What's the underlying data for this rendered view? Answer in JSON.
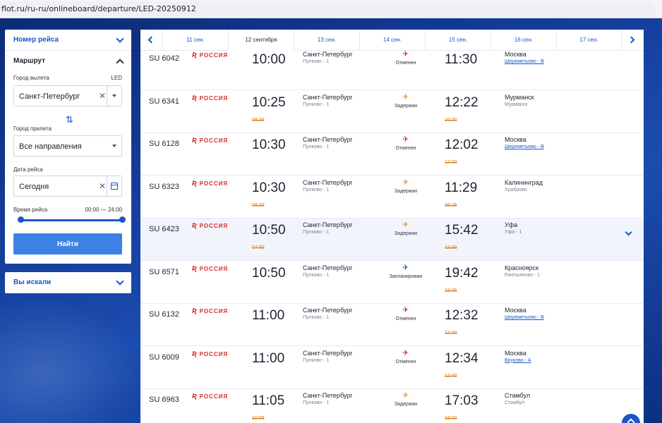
{
  "browser": {
    "url": "flot.ru/ru-ru/onlineboard/departure/LED-20250912"
  },
  "filters": {
    "flight_number_label": "Номер рейса",
    "route_label": "Маршрут",
    "departure_city_label": "Город вылета",
    "departure_code": "LED",
    "departure_city_value": "Санкт-Петербург",
    "arrival_city_label": "Город прилета",
    "arrival_city_value": "Все направления",
    "date_label": "Дата рейса",
    "date_value": "Сегодня",
    "time_label": "Время рейса",
    "time_range": "00:00 — 24:00",
    "find_button": "Найти",
    "searched_label": "Вы искали"
  },
  "date_tabs": [
    "11 сен.",
    "12 сентября",
    "13 сен.",
    "14 сен.",
    "15 сен.",
    "16 сен.",
    "17 сен."
  ],
  "active_tab_index": 1,
  "airline": "РОССИЯ",
  "status_colors": {
    "cancelled": "#d42a2a",
    "delayed": "#f08a1c",
    "scheduled": "#1a56c9"
  },
  "flights": [
    {
      "number": "SU 6042",
      "dep": "10:00",
      "dep_old": "",
      "from": "Санкт-Петербург",
      "from_airport": "Пулково - 1",
      "status": "Отменен",
      "status_type": "cancelled",
      "arr": "11:30",
      "arr_old": "",
      "to": "Москва",
      "to_airport": "Шереметьево - B",
      "to_link": true
    },
    {
      "number": "SU 6341",
      "dep": "10:25",
      "dep_old": "08:25",
      "from": "Санкт-Петербург",
      "from_airport": "Пулково - 1",
      "status": "Задержан",
      "status_type": "delayed",
      "arr": "12:22",
      "arr_old": "10:20",
      "to": "Мурманск",
      "to_airport": "Мурманск",
      "to_link": false
    },
    {
      "number": "SU 6128",
      "dep": "10:30",
      "dep_old": "",
      "from": "Санкт-Петербург",
      "from_airport": "Пулково - 1",
      "status": "Отменен",
      "status_type": "cancelled",
      "arr": "12:02",
      "arr_old": "12:00",
      "to": "Москва",
      "to_airport": "Шереметьево - B",
      "to_link": true
    },
    {
      "number": "SU 6323",
      "dep": "10:30",
      "dep_old": "08:30",
      "from": "Санкт-Петербург",
      "from_airport": "Пулково - 1",
      "status": "Задержан",
      "status_type": "delayed",
      "arr": "11:29",
      "arr_old": "09:25",
      "to": "Калининград",
      "to_airport": "Храброво",
      "to_link": false
    },
    {
      "number": "SU 6423",
      "dep": "10:50",
      "dep_old": "07:50",
      "from": "Санкт-Петербург",
      "from_airport": "Пулково - 1",
      "status": "Задержан",
      "status_type": "delayed",
      "arr": "15:42",
      "arr_old": "12:35",
      "to": "Уфа",
      "to_airport": "Уфа - 1",
      "to_link": false
    },
    {
      "number": "SU 6571",
      "dep": "10:50",
      "dep_old": "",
      "from": "Санкт-Петербург",
      "from_airport": "Пулково - 1",
      "status": "Запланирован",
      "status_type": "scheduled",
      "arr": "19:42",
      "arr_old": "19:35",
      "to": "Красноярск",
      "to_airport": "Емельяново - 1",
      "to_link": false
    },
    {
      "number": "SU 6132",
      "dep": "11:00",
      "dep_old": "",
      "from": "Санкт-Петербург",
      "from_airport": "Пулково - 1",
      "status": "Отменен",
      "status_type": "cancelled",
      "arr": "12:32",
      "arr_old": "12:30",
      "to": "Москва",
      "to_airport": "Шереметьево - B",
      "to_link": true
    },
    {
      "number": "SU 6009",
      "dep": "11:00",
      "dep_old": "",
      "from": "Санкт-Петербург",
      "from_airport": "Пулково - 1",
      "status": "Отменен",
      "status_type": "cancelled",
      "arr": "12:34",
      "arr_old": "12:40",
      "to": "Москва",
      "to_airport": "Внуково - A",
      "to_link": true
    },
    {
      "number": "SU 6963",
      "dep": "11:05",
      "dep_old": "10:05",
      "from": "Санкт-Петербург",
      "from_airport": "Пулково - 1",
      "status": "Задержан",
      "status_type": "delayed",
      "arr": "17:03",
      "arr_old": "16:00",
      "to": "Стамбул",
      "to_airport": "Стамбул",
      "to_link": false
    }
  ]
}
